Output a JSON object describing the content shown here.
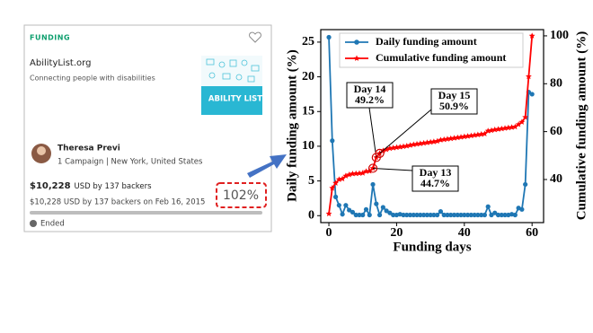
{
  "card": {
    "label": "FUNDING",
    "title": "AbilityList.org",
    "subtitle": "Connecting people with disabilities",
    "logo_text": "ABILITY LIST",
    "creator": "Theresa Previ",
    "creator_info": "1 Campaign | New York, United States",
    "amount": "$10,228",
    "amount_suffix": "USD by 137 backers",
    "amount_detail": "$10,228 USD by 137 backers on Feb 16, 2015",
    "percent": "102%",
    "status": "Ended"
  },
  "chart_data": {
    "type": "line",
    "xlabel": "Funding days",
    "ylabel": "Daily funding amount (%)",
    "y2label": "Cumulative funding amount (%)",
    "x": [
      0,
      1,
      2,
      3,
      4,
      5,
      6,
      7,
      8,
      9,
      10,
      11,
      12,
      13,
      14,
      15,
      16,
      17,
      18,
      19,
      20,
      21,
      22,
      23,
      24,
      25,
      26,
      27,
      28,
      29,
      30,
      31,
      32,
      33,
      34,
      35,
      36,
      37,
      38,
      39,
      40,
      41,
      42,
      43,
      44,
      45,
      46,
      47,
      48,
      49,
      50,
      51,
      52,
      53,
      54,
      55,
      56,
      57,
      58,
      59,
      60
    ],
    "series": [
      {
        "name": "Daily funding amount",
        "color": "#1f77b4",
        "marker": "circle",
        "values": [
          25.7,
          10.8,
          2.7,
          1.5,
          0.2,
          1.5,
          0.8,
          0.5,
          0.1,
          0.1,
          0.1,
          0.9,
          0.1,
          4.5,
          1.7,
          0.1,
          1.2,
          0.7,
          0.4,
          0.1,
          0.1,
          0.2,
          0.1,
          0.1,
          0.1,
          0.1,
          0.1,
          0.1,
          0.1,
          0.1,
          0.1,
          0.1,
          0.1,
          0.6,
          0.1,
          0.1,
          0.1,
          0.1,
          0.1,
          0.1,
          0.1,
          0.1,
          0.1,
          0.1,
          0.1,
          0.1,
          0.1,
          1.3,
          0.1,
          0.4,
          0.1,
          0.1,
          0.1,
          0.1,
          0.2,
          0.1,
          1.1,
          0.9,
          4.5,
          17.8,
          17.5
        ]
      },
      {
        "name": "Cumulative funding amount",
        "color": "#ff0000",
        "marker": "star",
        "axis": "y2",
        "values": [
          25.7,
          36.4,
          38.5,
          40,
          40.3,
          41.5,
          42,
          42.4,
          42.5,
          42.6,
          42.7,
          43.4,
          43.5,
          44.7,
          49.2,
          50.9,
          52,
          52.5,
          53,
          53.2,
          53.4,
          53.6,
          53.8,
          54,
          54.3,
          54.6,
          54.8,
          55,
          55.2,
          55.4,
          55.6,
          55.8,
          56,
          56.5,
          56.7,
          56.9,
          57.1,
          57.3,
          57.5,
          57.7,
          57.9,
          58.1,
          58.3,
          58.5,
          58.7,
          58.9,
          59.1,
          60.3,
          60.5,
          60.8,
          61,
          61.2,
          61.4,
          61.6,
          61.8,
          62,
          63,
          64,
          66,
          83,
          100
        ]
      }
    ],
    "annotations": [
      {
        "lines": [
          "Day 14",
          "49.2%"
        ]
      },
      {
        "lines": [
          "Day 15",
          "50.9%"
        ]
      },
      {
        "lines": [
          "Day 13",
          "44.7%"
        ]
      }
    ],
    "xlim": [
      -2.4,
      63.4
    ],
    "xticks": [
      0,
      20,
      40,
      60
    ],
    "ylim": [
      -1,
      26.8
    ],
    "yticks": [
      0,
      5,
      10,
      15,
      20,
      25
    ],
    "y2lim": [
      22,
      102.6
    ],
    "y2ticks": [
      40,
      60,
      80,
      100
    ],
    "legend": "upper center"
  }
}
